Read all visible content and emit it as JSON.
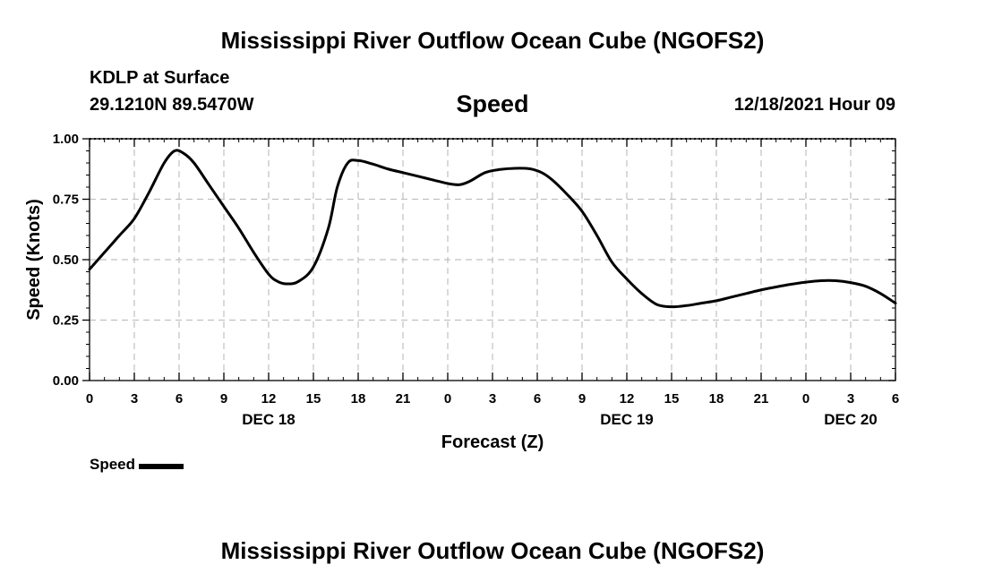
{
  "header": {
    "title": "Mississippi River Outflow Ocean Cube (NGOFS2)",
    "station": "KDLP at Surface",
    "coords": "29.1210N  89.5470W",
    "timestamp": "12/18/2021 Hour 09"
  },
  "footer": {
    "title": "Mississippi River Outflow Ocean Cube (NGOFS2)"
  },
  "legend": {
    "label": "Speed"
  },
  "colors": {
    "line": "#000000",
    "grid": "#c0c0c0"
  },
  "chart_data": {
    "type": "line",
    "title": "Speed",
    "xlabel": "Forecast (Z)",
    "ylabel": "Speed (Knots)",
    "xlim": [
      0,
      54
    ],
    "ylim": [
      0,
      1
    ],
    "y_ticks": [
      {
        "value": 0,
        "label": "0.00"
      },
      {
        "value": 0.25,
        "label": "0.25"
      },
      {
        "value": 0.5,
        "label": "0.50"
      },
      {
        "value": 0.75,
        "label": "0.75"
      },
      {
        "value": 1,
        "label": "1.00"
      }
    ],
    "x_ticks": [
      {
        "value": 0,
        "label": "0"
      },
      {
        "value": 3,
        "label": "3"
      },
      {
        "value": 6,
        "label": "6"
      },
      {
        "value": 9,
        "label": "9"
      },
      {
        "value": 12,
        "label": "12"
      },
      {
        "value": 15,
        "label": "15"
      },
      {
        "value": 18,
        "label": "18"
      },
      {
        "value": 21,
        "label": "21"
      },
      {
        "value": 24,
        "label": "0"
      },
      {
        "value": 27,
        "label": "3"
      },
      {
        "value": 30,
        "label": "6"
      },
      {
        "value": 33,
        "label": "9"
      },
      {
        "value": 36,
        "label": "12"
      },
      {
        "value": 39,
        "label": "15"
      },
      {
        "value": 42,
        "label": "18"
      },
      {
        "value": 45,
        "label": "21"
      },
      {
        "value": 48,
        "label": "0"
      },
      {
        "value": 51,
        "label": "3"
      },
      {
        "value": 54,
        "label": "6"
      }
    ],
    "date_labels": [
      {
        "value": 12,
        "label": "DEC 18"
      },
      {
        "value": 36,
        "label": "DEC 19"
      },
      {
        "value": 51,
        "label": "DEC 20"
      }
    ],
    "series": [
      {
        "name": "Speed",
        "x": [
          0,
          1,
          2,
          3,
          4,
          5,
          5.7,
          6.3,
          7,
          8,
          9,
          10,
          11,
          12,
          12.6,
          13.2,
          14,
          15,
          16,
          16.6,
          17.3,
          18,
          19,
          20,
          21,
          22,
          23,
          24,
          24.8,
          25.5,
          26.5,
          27.5,
          28.5,
          29.5,
          30.3,
          31,
          32,
          33,
          34,
          35,
          36,
          37,
          38,
          39,
          40,
          41,
          42,
          43,
          44,
          45,
          46,
          47,
          48,
          49,
          50,
          51,
          52,
          53,
          54
        ],
        "values": [
          0.46,
          0.53,
          0.6,
          0.67,
          0.78,
          0.9,
          0.95,
          0.94,
          0.9,
          0.81,
          0.72,
          0.63,
          0.53,
          0.44,
          0.41,
          0.4,
          0.41,
          0.47,
          0.63,
          0.8,
          0.9,
          0.91,
          0.895,
          0.875,
          0.86,
          0.845,
          0.83,
          0.815,
          0.81,
          0.825,
          0.86,
          0.873,
          0.878,
          0.876,
          0.86,
          0.83,
          0.77,
          0.7,
          0.6,
          0.49,
          0.42,
          0.36,
          0.315,
          0.305,
          0.31,
          0.32,
          0.33,
          0.345,
          0.36,
          0.375,
          0.387,
          0.398,
          0.407,
          0.413,
          0.413,
          0.405,
          0.39,
          0.36,
          0.32
        ]
      }
    ]
  }
}
